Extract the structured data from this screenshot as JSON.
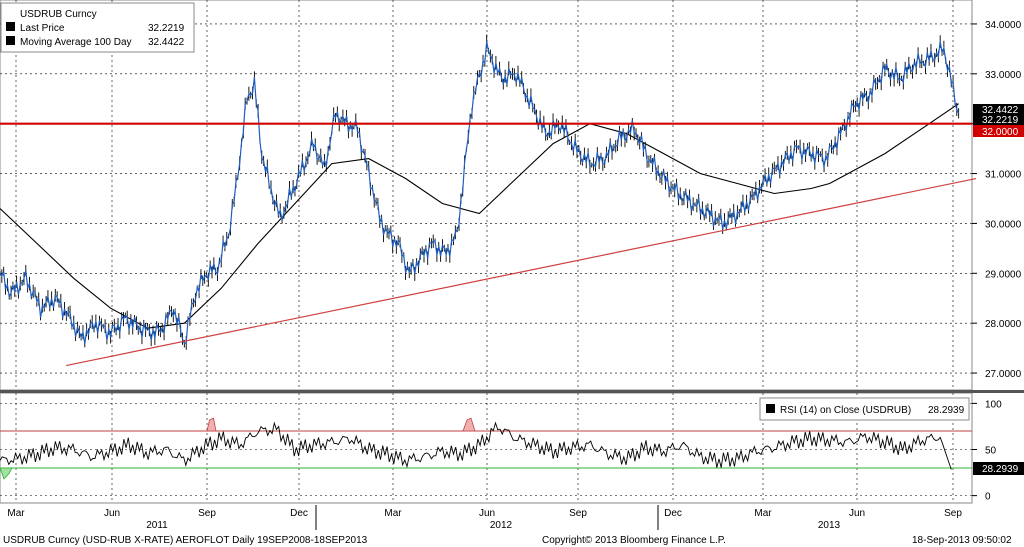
{
  "chart_data": [
    {
      "type": "line",
      "title": "USDRUB Curncy",
      "y_axis_side": "right",
      "ylim": [
        26.7,
        34.4
      ],
      "yticks": [
        27.0,
        28.0,
        29.0,
        30.0,
        31.0,
        32.0,
        33.0,
        34.0
      ],
      "ytick_labels": [
        "27.0000",
        "28.0000",
        "29.0000",
        "30.0000",
        "31.0000",
        "32.0000",
        "33.0000",
        "34.0000"
      ],
      "grid": true,
      "legend_position": "top-left",
      "series": [
        {
          "name": "Last Price",
          "last_value_label": "32.2219",
          "color": "#1f5fbf",
          "style": "candles",
          "t": [
            0,
            3,
            7,
            11,
            15,
            19,
            22,
            26,
            30,
            34,
            38,
            42,
            44,
            47,
            50,
            53,
            56,
            59,
            62,
            64,
            67,
            69,
            71,
            73,
            76,
            79,
            82,
            85,
            88,
            91,
            94,
            97,
            100,
            103,
            105,
            108,
            111,
            114,
            117,
            121,
            124,
            128,
            132,
            136,
            140,
            144,
            148,
            152,
            156,
            160,
            164,
            168,
            172,
            176,
            180,
            184,
            188,
            192,
            196,
            200,
            204,
            208,
            212,
            216,
            220,
            224,
            228,
            232,
            236,
            240,
            244,
            248,
            252,
            256,
            260
          ],
          "values": [
            29.0,
            28.6,
            28.9,
            28.3,
            28.5,
            28.1,
            27.7,
            28.0,
            27.8,
            28.1,
            27.9,
            27.8,
            27.9,
            28.3,
            27.6,
            28.6,
            29.0,
            29.1,
            29.8,
            30.7,
            32.5,
            32.8,
            31.4,
            30.8,
            30.1,
            30.6,
            31.1,
            31.6,
            31.1,
            32.2,
            32.0,
            31.9,
            31.0,
            30.1,
            29.8,
            29.6,
            29.0,
            29.3,
            29.6,
            29.4,
            29.8,
            32.4,
            33.5,
            32.9,
            33.0,
            32.4,
            31.8,
            32.0,
            31.5,
            31.2,
            31.3,
            31.7,
            31.9,
            31.3,
            30.9,
            30.6,
            30.4,
            30.2,
            30.0,
            30.2,
            30.5,
            30.9,
            31.2,
            31.5,
            31.4,
            31.3,
            31.8,
            32.4,
            32.6,
            33.1,
            32.9,
            33.2,
            33.3,
            33.5,
            32.2
          ]
        },
        {
          "name": "Moving Average 100 Day",
          "last_value_label": "32.4422",
          "color": "#000000",
          "style": "line",
          "t": [
            0,
            10,
            20,
            30,
            40,
            50,
            60,
            70,
            80,
            90,
            100,
            110,
            120,
            130,
            140,
            150,
            160,
            170,
            180,
            190,
            200,
            210,
            215,
            220,
            225,
            230,
            240,
            250,
            260
          ],
          "values": [
            30.3,
            29.6,
            28.9,
            28.3,
            27.9,
            28.0,
            28.7,
            29.6,
            30.4,
            31.2,
            31.3,
            30.9,
            30.4,
            30.2,
            30.9,
            31.6,
            32.0,
            31.8,
            31.4,
            31.0,
            30.8,
            30.6,
            30.65,
            30.7,
            30.8,
            31.0,
            31.4,
            31.9,
            32.4
          ]
        }
      ],
      "horizontal_line": {
        "value": 32.0,
        "label": "32.0000",
        "color": "#d00000"
      },
      "trend_line": {
        "from": [
          3,
          27.15
        ],
        "to": [
          262,
          30.9
        ],
        "color": "#d04040"
      }
    },
    {
      "type": "line",
      "title": "RSI (14) on Close (USDRUB)",
      "last_value_label": "28.2939",
      "ylim": [
        -8,
        108
      ],
      "yticks": [
        0,
        50,
        100
      ],
      "ytick_labels": [
        "0",
        "50",
        "100"
      ],
      "overbought": 70,
      "oversold": 30,
      "series": [
        {
          "name": "RSI (14) on Close (USDRUB)",
          "color": "#000000",
          "t": [
            0,
            5,
            10,
            15,
            20,
            25,
            30,
            35,
            40,
            45,
            50,
            55,
            60,
            65,
            70,
            75,
            80,
            85,
            90,
            95,
            100,
            105,
            110,
            115,
            120,
            125,
            130,
            135,
            140,
            145,
            150,
            155,
            160,
            165,
            170,
            175,
            180,
            185,
            190,
            195,
            200,
            205,
            210,
            215,
            220,
            225,
            230,
            235,
            240,
            245,
            250,
            255,
            258
          ],
          "values": [
            38,
            40,
            45,
            52,
            50,
            42,
            48,
            55,
            46,
            50,
            38,
            52,
            62,
            55,
            70,
            72,
            50,
            55,
            58,
            62,
            50,
            45,
            38,
            42,
            48,
            45,
            55,
            75,
            62,
            55,
            48,
            52,
            55,
            45,
            40,
            52,
            48,
            55,
            42,
            38,
            40,
            48,
            52,
            58,
            62,
            60,
            58,
            64,
            58,
            50,
            60,
            64,
            28.3
          ]
        }
      ]
    }
  ],
  "x_axis": {
    "month_labels": [
      "Mar",
      "Jun",
      "Sep",
      "Dec",
      "Mar",
      "Jun",
      "Sep",
      "Dec",
      "Mar",
      "Jun",
      "Sep"
    ],
    "year_labels": [
      "2011",
      "2012",
      "2013"
    ]
  },
  "footer": {
    "left": "USDRUB Curncy (USD-RUB X-RATE) AEROFLOT  Daily 19SEP2008-18SEP2013",
    "center": "Copyright© 2013 Bloomberg Finance L.P.",
    "right": "18-Sep-2013 09:50:02"
  }
}
